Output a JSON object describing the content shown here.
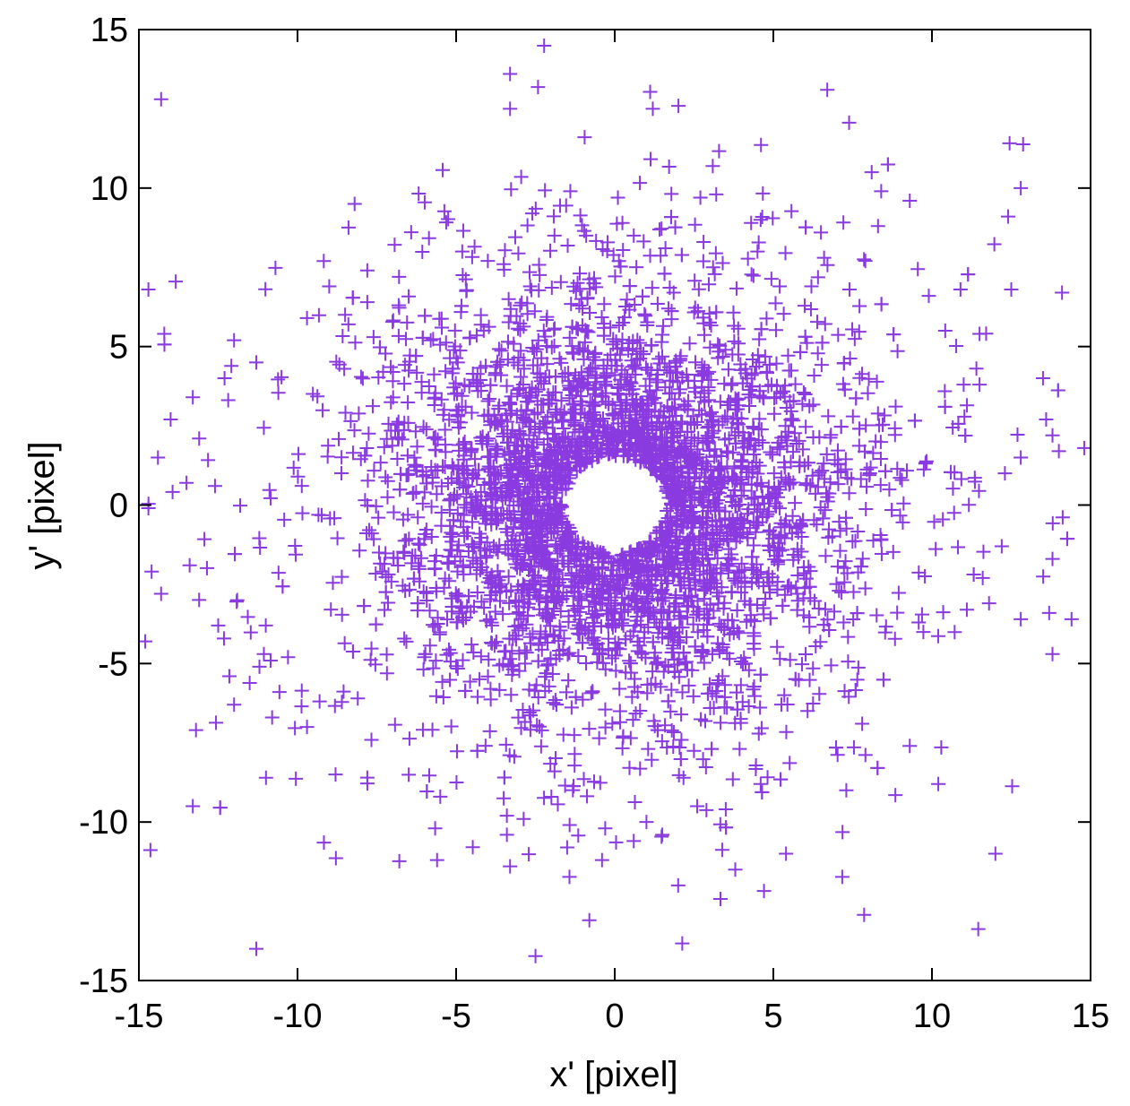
{
  "chart_data": {
    "type": "scatter",
    "title": "",
    "xlabel": "x' [pixel]",
    "ylabel": "y' [pixel]",
    "xlim": [
      -15,
      15
    ],
    "ylim": [
      -15,
      15
    ],
    "x_ticks": [
      "-15",
      "-10",
      "-5",
      "0",
      "5",
      "10",
      "15"
    ],
    "y_ticks": [
      "15",
      "10",
      "5",
      "0",
      "-5",
      "-10",
      "-15"
    ],
    "grid": false,
    "legend": "none",
    "marker": "plus",
    "color": "#8a3be0",
    "distribution_note": "Dense ring of several thousand points around the origin with an empty hole of radius ~1.5 px; density decreases outward to about radius 15.",
    "points": [
      [
        -14.3,
        12.8
      ],
      [
        -3.3,
        13.6
      ],
      [
        -3.3,
        12.5
      ],
      [
        1.2,
        12.5
      ],
      [
        6.7,
        13.1
      ],
      [
        8.1,
        10.5
      ],
      [
        12.8,
        10.0
      ],
      [
        12.4,
        9.1
      ],
      [
        8.4,
        9.9
      ],
      [
        9.3,
        9.6
      ],
      [
        -8.2,
        9.5
      ],
      [
        -1.4,
        9.9
      ],
      [
        0.1,
        9.7
      ],
      [
        2.7,
        9.7
      ],
      [
        3.2,
        9.8
      ],
      [
        4.3,
        8.9
      ],
      [
        4.6,
        9.0
      ],
      [
        8.3,
        8.8
      ],
      [
        6.5,
        8.6
      ],
      [
        12.5,
        6.8
      ],
      [
        14.1,
        6.7
      ],
      [
        10.9,
        6.8
      ],
      [
        9.9,
        6.6
      ],
      [
        -14.7,
        6.8
      ],
      [
        -14.2,
        5.4
      ],
      [
        -12.0,
        5.2
      ],
      [
        -9.7,
        5.9
      ],
      [
        -11.3,
        4.5
      ],
      [
        -12.3,
        4.0
      ],
      [
        -13.3,
        3.4
      ],
      [
        -14.0,
        2.7
      ],
      [
        -14.4,
        1.5
      ],
      [
        -13.1,
        2.1
      ],
      [
        -13.5,
        0.7
      ],
      [
        -12.6,
        0.6
      ],
      [
        -14.7,
        -0.1
      ],
      [
        -14.6,
        -2.1
      ],
      [
        -13.4,
        -1.9
      ],
      [
        -14.3,
        -2.8
      ],
      [
        -14.8,
        -4.3
      ],
      [
        -12.5,
        -3.8
      ],
      [
        -11.9,
        -3.0
      ],
      [
        -11.0,
        -3.8
      ],
      [
        -12.0,
        -6.3
      ],
      [
        -13.2,
        -7.1
      ],
      [
        -11.2,
        -5.1
      ],
      [
        -10.8,
        -6.7
      ],
      [
        -10.3,
        -4.8
      ],
      [
        -9.7,
        -7.0
      ],
      [
        -8.8,
        -8.5
      ],
      [
        -7.8,
        -8.6
      ],
      [
        -8.1,
        -6.1
      ],
      [
        -13.3,
        -9.5
      ],
      [
        -11.3,
        -14.0
      ],
      [
        -5.5,
        -9.2
      ],
      [
        -5.6,
        -11.2
      ],
      [
        -3.4,
        -10.4
      ],
      [
        -3.3,
        -11.4
      ],
      [
        -3.4,
        -9.8
      ],
      [
        -1.5,
        -10.8
      ],
      [
        -0.3,
        -10.2
      ],
      [
        -0.4,
        -11.2
      ],
      [
        -0.8,
        -13.1
      ],
      [
        0.6,
        -10.6
      ],
      [
        1.0,
        -10.0
      ],
      [
        1.5,
        -10.4
      ],
      [
        2.0,
        -12.0
      ],
      [
        2.6,
        -9.5
      ],
      [
        3.8,
        -11.5
      ],
      [
        3.5,
        -9.6
      ],
      [
        5.4,
        -11.0
      ],
      [
        4.6,
        -8.8
      ],
      [
        7.3,
        -9.0
      ],
      [
        10.2,
        -8.8
      ],
      [
        12.0,
        -11.0
      ],
      [
        9.3,
        -7.6
      ],
      [
        7.8,
        -6.9
      ],
      [
        13.8,
        -4.7
      ],
      [
        14.4,
        -3.6
      ],
      [
        13.8,
        -1.7
      ],
      [
        12.8,
        -3.6
      ],
      [
        11.8,
        -3.1
      ],
      [
        11.6,
        -2.3
      ],
      [
        11.1,
        -3.3
      ],
      [
        12.2,
        -1.3
      ],
      [
        13.6,
        2.7
      ],
      [
        13.8,
        2.2
      ],
      [
        14.0,
        1.7
      ],
      [
        14.8,
        1.8
      ],
      [
        12.8,
        1.5
      ],
      [
        13.5,
        4.0
      ],
      [
        11.5,
        5.4
      ],
      [
        11.0,
        3.8
      ],
      [
        11.5,
        3.8
      ],
      [
        12.3,
        1.0
      ],
      [
        7.9,
        7.7
      ],
      [
        6.6,
        7.8
      ],
      [
        6.2,
        6.9
      ],
      [
        7.4,
        6.8
      ],
      [
        -6.8,
        7.2
      ],
      [
        -7.8,
        7.4
      ],
      [
        -9.0,
        6.9
      ],
      [
        -8.5,
        6.0
      ],
      [
        -7.8,
        6.4
      ],
      [
        -3.5,
        7.6
      ],
      [
        -2.6,
        9.2
      ],
      [
        -1.9,
        8.5
      ],
      [
        -0.9,
        8.5
      ],
      [
        0.6,
        8.5
      ],
      [
        1.6,
        8.1
      ],
      [
        2.8,
        8.3
      ],
      [
        3.1,
        7.5
      ],
      [
        4.5,
        8.0
      ],
      [
        5.2,
        6.9
      ],
      [
        -4.0,
        7.7
      ]
    ]
  }
}
